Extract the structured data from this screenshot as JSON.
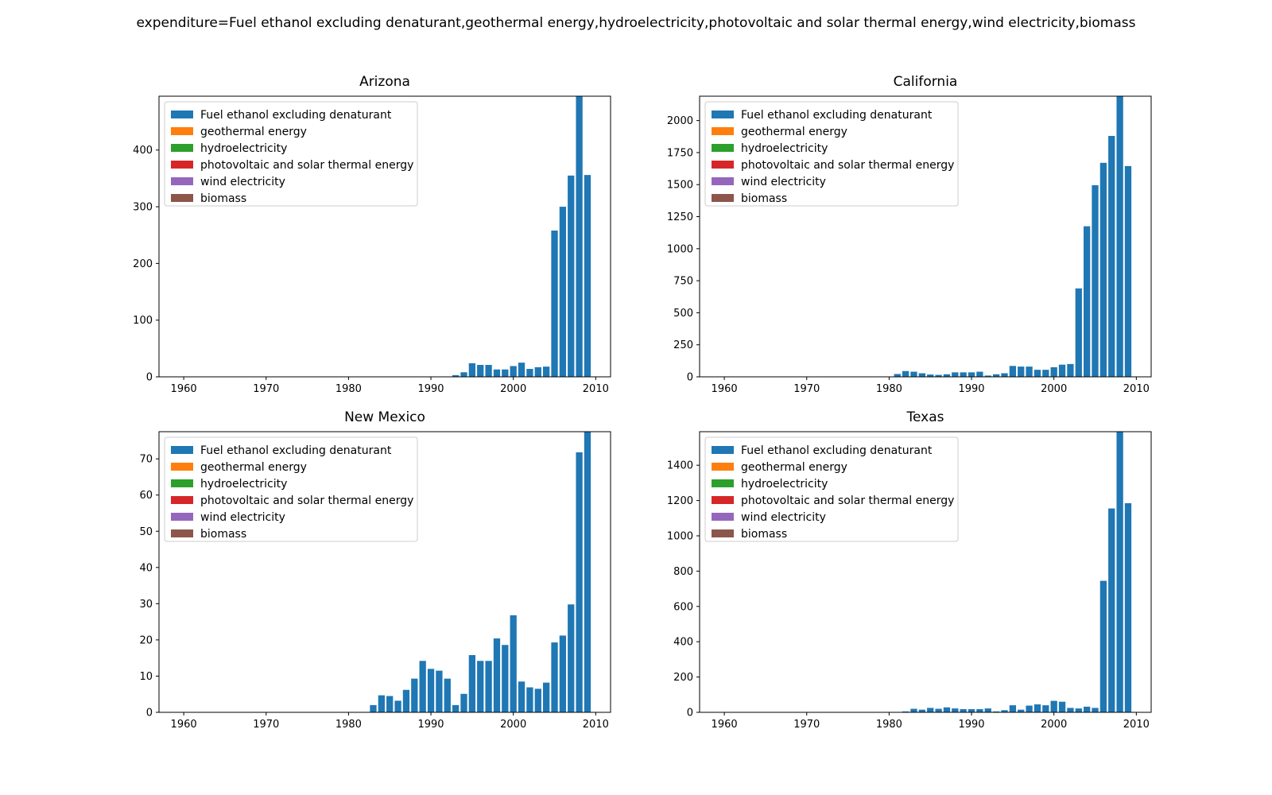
{
  "figure": {
    "suptitle": "expenditure=Fuel ethanol excluding denaturant,geothermal energy,hydroelectricity,photovoltaic and solar thermal energy,wind electricity,biomass"
  },
  "legend": {
    "placement": "upper-left",
    "entries": [
      {
        "name": "Fuel ethanol excluding denaturant",
        "color": "#1f77b4"
      },
      {
        "name": "geothermal energy",
        "color": "#ff7f0e"
      },
      {
        "name": "hydroelectricity",
        "color": "#2ca02c"
      },
      {
        "name": "photovoltaic and solar thermal energy",
        "color": "#d62728"
      },
      {
        "name": "wind electricity",
        "color": "#9467bd"
      },
      {
        "name": "biomass",
        "color": "#8c564b"
      }
    ]
  },
  "chart_data": [
    {
      "type": "bar",
      "title": "Arizona",
      "xlabel": "",
      "ylabel": "",
      "xlim": [
        1957,
        2011.8
      ],
      "ylim": [
        0,
        495
      ],
      "xticks": [
        1960,
        1970,
        1980,
        1990,
        2000,
        2010
      ],
      "yticks": [
        0,
        100,
        200,
        300,
        400
      ],
      "grid": false,
      "x": [
        1993,
        1994,
        1995,
        1996,
        1997,
        1998,
        1999,
        2000,
        2001,
        2002,
        2003,
        2004,
        2005,
        2006,
        2007,
        2008,
        2009
      ],
      "series": [
        {
          "name": "Fuel ethanol excluding denaturant",
          "color": "#1f77b4",
          "values": [
            3,
            8,
            24,
            21,
            21,
            13,
            13,
            19,
            25,
            14,
            17,
            18,
            258,
            300,
            355,
            495,
            356
          ]
        }
      ]
    },
    {
      "type": "bar",
      "title": "California",
      "xlabel": "",
      "ylabel": "",
      "xlim": [
        1957,
        2011.8
      ],
      "ylim": [
        0,
        2190
      ],
      "xticks": [
        1960,
        1970,
        1980,
        1990,
        2000,
        2010
      ],
      "yticks": [
        0,
        250,
        500,
        750,
        1000,
        1250,
        1500,
        1750,
        2000
      ],
      "grid": false,
      "x": [
        1981,
        1982,
        1983,
        1984,
        1985,
        1986,
        1987,
        1988,
        1989,
        1990,
        1991,
        1992,
        1993,
        1994,
        1995,
        1996,
        1997,
        1998,
        1999,
        2000,
        2001,
        2002,
        2003,
        2004,
        2005,
        2006,
        2007,
        2008,
        2009
      ],
      "series": [
        {
          "name": "Fuel ethanol excluding denaturant",
          "color": "#1f77b4",
          "values": [
            22,
            45,
            40,
            28,
            18,
            15,
            20,
            35,
            35,
            35,
            40,
            10,
            20,
            28,
            85,
            80,
            80,
            55,
            55,
            75,
            95,
            100,
            690,
            1175,
            1495,
            1670,
            1880,
            2190,
            1645
          ]
        }
      ]
    },
    {
      "type": "bar",
      "title": "New Mexico",
      "xlabel": "",
      "ylabel": "",
      "xlim": [
        1957,
        2011.8
      ],
      "ylim": [
        0,
        77.5
      ],
      "xticks": [
        1960,
        1970,
        1980,
        1990,
        2000,
        2010
      ],
      "yticks": [
        0,
        10,
        20,
        30,
        40,
        50,
        60,
        70
      ],
      "grid": false,
      "x": [
        1983,
        1984,
        1985,
        1986,
        1987,
        1988,
        1989,
        1990,
        1991,
        1992,
        1993,
        1994,
        1995,
        1996,
        1997,
        1998,
        1999,
        2000,
        2001,
        2002,
        2003,
        2004,
        2005,
        2006,
        2007,
        2008,
        2009
      ],
      "series": [
        {
          "name": "Fuel ethanol excluding denaturant",
          "color": "#1f77b4",
          "values": [
            2,
            4.7,
            4.5,
            3.2,
            6.2,
            9.3,
            14.2,
            12,
            11.5,
            9.3,
            2,
            5.1,
            15.8,
            14.2,
            14.2,
            20.4,
            18.6,
            26.8,
            8.5,
            6.9,
            6.5,
            8.2,
            19.3,
            21.2,
            29.8,
            71.8,
            77.5
          ]
        }
      ]
    },
    {
      "type": "bar",
      "title": "Texas",
      "xlabel": "",
      "ylabel": "",
      "xlim": [
        1957,
        2011.8
      ],
      "ylim": [
        0,
        1590
      ],
      "xticks": [
        1960,
        1970,
        1980,
        1990,
        2000,
        2010
      ],
      "yticks": [
        0,
        200,
        400,
        600,
        800,
        1000,
        1200,
        1400
      ],
      "grid": false,
      "x": [
        1982,
        1983,
        1984,
        1985,
        1986,
        1987,
        1988,
        1989,
        1990,
        1991,
        1992,
        1993,
        1994,
        1995,
        1996,
        1997,
        1998,
        1999,
        2000,
        2001,
        2002,
        2003,
        2004,
        2005,
        2006,
        2007,
        2008,
        2009
      ],
      "series": [
        {
          "name": "Fuel ethanol excluding denaturant",
          "color": "#1f77b4",
          "values": [
            5,
            20,
            15,
            25,
            20,
            28,
            22,
            18,
            18,
            18,
            22,
            5,
            12,
            40,
            15,
            38,
            45,
            40,
            65,
            60,
            25,
            22,
            32,
            25,
            745,
            1155,
            1590,
            1185
          ]
        }
      ]
    }
  ]
}
